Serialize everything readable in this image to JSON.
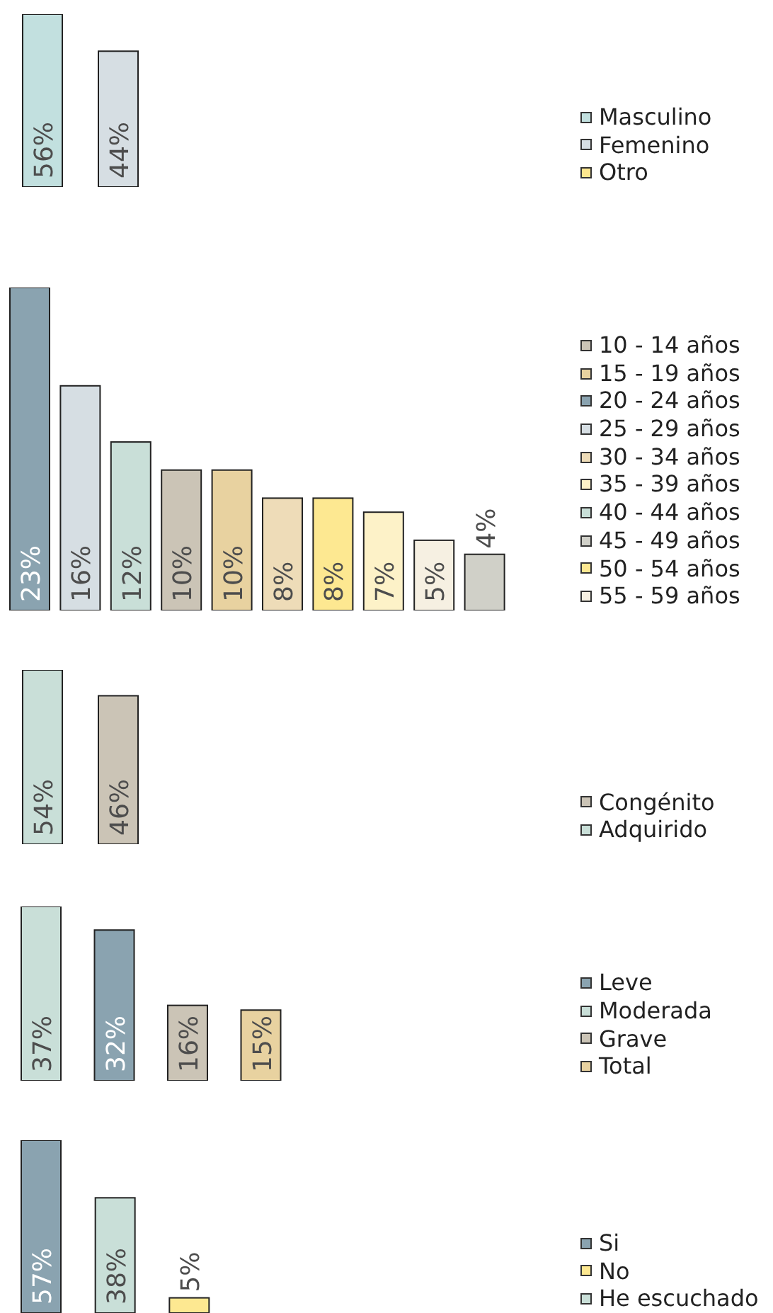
{
  "chart_data": [
    {
      "type": "bar",
      "stacked": true,
      "legend": "right",
      "categories": [
        null,
        null
      ],
      "series": [
        {
          "name": "Masculino",
          "color": "#c2e0df",
          "values": [
            56,
            null
          ],
          "value_labels": [
            "56%",
            null
          ]
        },
        {
          "name": "Femenino",
          "color": "#d6dee3",
          "values": [
            null,
            44
          ],
          "value_labels": [
            null,
            "44%"
          ]
        },
        {
          "name": "Otro",
          "color": "#fde78f",
          "values": [
            null,
            null
          ],
          "value_labels": [
            null,
            null
          ]
        }
      ]
    },
    {
      "type": "bar",
      "stacked": true,
      "legend": "right",
      "categories": [
        null,
        null,
        null,
        null,
        null,
        null,
        null,
        null,
        null,
        null
      ],
      "series": [
        {
          "name": "10 - 14 años",
          "color": "#cbc4b6",
          "values": [
            null,
            null,
            null,
            10,
            null,
            null,
            null,
            null,
            null,
            null
          ],
          "value_labels": [
            null,
            null,
            null,
            "10%",
            null,
            null,
            null,
            null,
            null,
            null
          ]
        },
        {
          "name": "15 - 19 años",
          "color": "#e8d2a0",
          "values": [
            null,
            null,
            null,
            null,
            10,
            null,
            null,
            null,
            null,
            null
          ],
          "value_labels": [
            null,
            null,
            null,
            null,
            "10%",
            null,
            null,
            null,
            null,
            null
          ]
        },
        {
          "name": "20 - 24 años",
          "color": "#8aa3b0",
          "values": [
            23,
            null,
            null,
            null,
            null,
            null,
            null,
            null,
            null,
            null
          ],
          "value_labels": [
            "23%",
            null,
            null,
            null,
            null,
            null,
            null,
            null,
            null,
            null
          ]
        },
        {
          "name": "25 - 29 años",
          "color": "#d6dee3",
          "values": [
            null,
            16,
            null,
            null,
            null,
            null,
            null,
            null,
            null,
            null
          ],
          "value_labels": [
            null,
            "16%",
            null,
            null,
            null,
            null,
            null,
            null,
            null,
            null
          ]
        },
        {
          "name": "30 - 34 años",
          "color": "#eedcb8",
          "values": [
            null,
            null,
            null,
            null,
            null,
            8,
            null,
            null,
            null,
            null
          ],
          "value_labels": [
            null,
            null,
            null,
            null,
            null,
            "8%",
            null,
            null,
            null,
            null
          ]
        },
        {
          "name": "35 - 39 años",
          "color": "#fdf2c8",
          "values": [
            null,
            null,
            null,
            null,
            null,
            null,
            null,
            7,
            null,
            null
          ],
          "value_labels": [
            null,
            null,
            null,
            null,
            null,
            null,
            null,
            "7%",
            null,
            null
          ]
        },
        {
          "name": "40 - 44 años",
          "color": "#c9dfd8",
          "values": [
            null,
            null,
            12,
            null,
            null,
            null,
            null,
            null,
            null,
            null
          ],
          "value_labels": [
            null,
            null,
            "12%",
            null,
            null,
            null,
            null,
            null,
            null,
            null
          ]
        },
        {
          "name": "45 - 49 años",
          "color": "#d0d0c8",
          "values": [
            null,
            null,
            null,
            null,
            null,
            null,
            null,
            null,
            null,
            4
          ],
          "value_labels": [
            null,
            null,
            null,
            null,
            null,
            null,
            null,
            null,
            null,
            "4%"
          ]
        },
        {
          "name": "50 - 54 años",
          "color": "#fde891",
          "values": [
            null,
            null,
            null,
            null,
            null,
            null,
            8,
            null,
            null,
            null
          ],
          "value_labels": [
            null,
            null,
            null,
            null,
            null,
            null,
            "8%",
            null,
            null,
            null
          ]
        },
        {
          "name": "55 - 59 años",
          "color": "#f6f0e2",
          "values": [
            null,
            null,
            null,
            null,
            null,
            null,
            null,
            null,
            5,
            null
          ],
          "value_labels": [
            null,
            null,
            null,
            null,
            null,
            null,
            null,
            null,
            "5%",
            null
          ]
        }
      ]
    },
    {
      "type": "bar",
      "stacked": true,
      "legend": "right",
      "categories": [
        null,
        null
      ],
      "series": [
        {
          "name": "Congénito",
          "color": "#cbc4b6",
          "values": [
            null,
            46
          ],
          "value_labels": [
            null,
            "46%"
          ]
        },
        {
          "name": "Adquirido",
          "color": "#c9dfd8",
          "values": [
            54,
            null
          ],
          "value_labels": [
            "54%",
            null
          ]
        }
      ]
    },
    {
      "type": "bar",
      "stacked": true,
      "legend": "right",
      "categories": [
        null,
        null,
        null,
        null
      ],
      "series": [
        {
          "name": "Leve",
          "color": "#8aa3b0",
          "values": [
            null,
            32,
            null,
            null
          ],
          "value_labels": [
            null,
            "32%",
            null,
            null
          ]
        },
        {
          "name": "Moderada",
          "color": "#c9dfd8",
          "values": [
            37,
            null,
            null,
            null
          ],
          "value_labels": [
            "37%",
            null,
            null,
            null
          ]
        },
        {
          "name": "Grave",
          "color": "#cbc4b6",
          "values": [
            null,
            null,
            16,
            null
          ],
          "value_labels": [
            null,
            null,
            "16%",
            null
          ]
        },
        {
          "name": "Total",
          "color": "#e8d2a0",
          "values": [
            null,
            null,
            null,
            15
          ],
          "value_labels": [
            null,
            null,
            null,
            "15%"
          ]
        }
      ]
    },
    {
      "type": "bar",
      "stacked": true,
      "legend": "right",
      "categories": [
        null,
        null,
        null
      ],
      "series": [
        {
          "name": "Si",
          "color": "#8aa3b0",
          "values": [
            57,
            null,
            null
          ],
          "value_labels": [
            "57%",
            null,
            null
          ]
        },
        {
          "name": "No",
          "color": "#fde891",
          "values": [
            null,
            null,
            5
          ],
          "value_labels": [
            null,
            null,
            "5%"
          ]
        },
        {
          "name": "He escuchado",
          "color": "#c9dfd8",
          "values": [
            null,
            38,
            null
          ],
          "value_labels": [
            null,
            "38%",
            null
          ]
        }
      ]
    }
  ]
}
